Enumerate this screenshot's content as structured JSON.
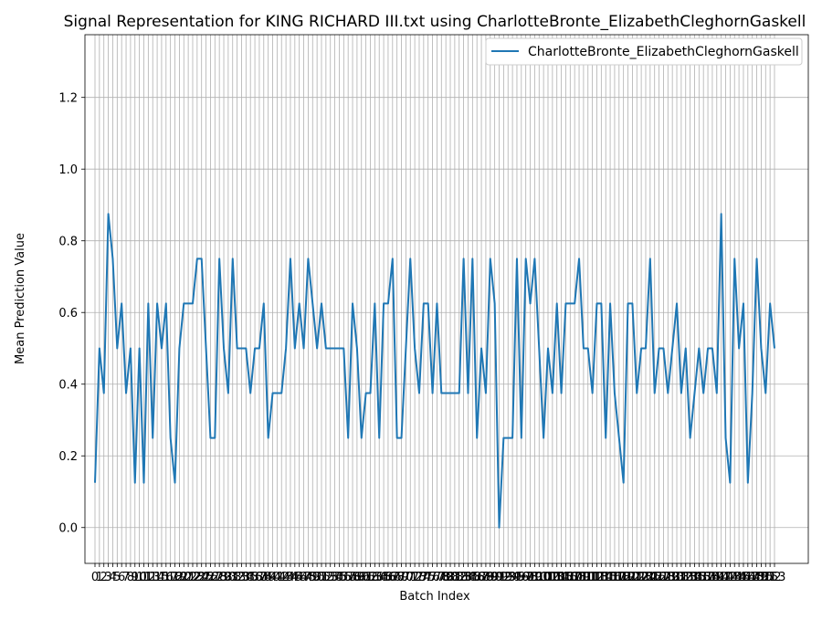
{
  "chart_data": {
    "type": "line",
    "title": "Signal Representation for KING RICHARD III.txt using CharlotteBronte_ElizabethCleghornGaskell",
    "xlabel": "Batch Index",
    "ylabel": "Mean Prediction Value",
    "ylim": [
      -0.1,
      1.375
    ],
    "y_ticks": [
      0.0,
      0.2,
      0.4,
      0.6,
      0.8,
      1.0,
      1.2
    ],
    "grid": true,
    "legend_position": "top-right",
    "series": [
      {
        "name": "CharlotteBronte_ElizabethCleghornGaskell",
        "color": "#1f77b4",
        "values": [
          0.125,
          0.5,
          0.375,
          0.875,
          0.75,
          0.5,
          0.625,
          0.375,
          0.5,
          0.125,
          0.5,
          0.125,
          0.625,
          0.25,
          0.625,
          0.5,
          0.625,
          0.25,
          0.125,
          0.5,
          0.625,
          0.625,
          0.625,
          0.75,
          0.75,
          0.5,
          0.25,
          0.25,
          0.75,
          0.5,
          0.375,
          0.75,
          0.5,
          0.5,
          0.5,
          0.375,
          0.5,
          0.5,
          0.625,
          0.25,
          0.375,
          0.375,
          0.375,
          0.5,
          0.75,
          0.5,
          0.625,
          0.5,
          0.75,
          0.625,
          0.5,
          0.625,
          0.5,
          0.5,
          0.5,
          0.5,
          0.5,
          0.25,
          0.625,
          0.5,
          0.25,
          0.375,
          0.375,
          0.625,
          0.25,
          0.625,
          0.625,
          0.75,
          0.25,
          0.25,
          0.5,
          0.75,
          0.5,
          0.375,
          0.625,
          0.625,
          0.375,
          0.625,
          0.375,
          0.375,
          0.375,
          0.375,
          0.375,
          0.75,
          0.375,
          0.75,
          0.25,
          0.5,
          0.375,
          0.75,
          0.625,
          0.0,
          0.25,
          0.25,
          0.25,
          0.75,
          0.25,
          0.75,
          0.625,
          0.75,
          0.5,
          0.25,
          0.5,
          0.375,
          0.625,
          0.375,
          0.625,
          0.625,
          0.625,
          0.75,
          0.5,
          0.5,
          0.375,
          0.625,
          0.625,
          0.25,
          0.625,
          0.375,
          0.25,
          0.125,
          0.625,
          0.625,
          0.375,
          0.5,
          0.5,
          0.75,
          0.375,
          0.5,
          0.5,
          0.375,
          0.5,
          0.625,
          0.375,
          0.5,
          0.25,
          0.375,
          0.5,
          0.375,
          0.5,
          0.5,
          0.375,
          0.875,
          0.25,
          0.125,
          0.75,
          0.5,
          0.625,
          0.125,
          0.375,
          0.75,
          0.5,
          0.375,
          0.625,
          0.5
        ]
      }
    ]
  }
}
